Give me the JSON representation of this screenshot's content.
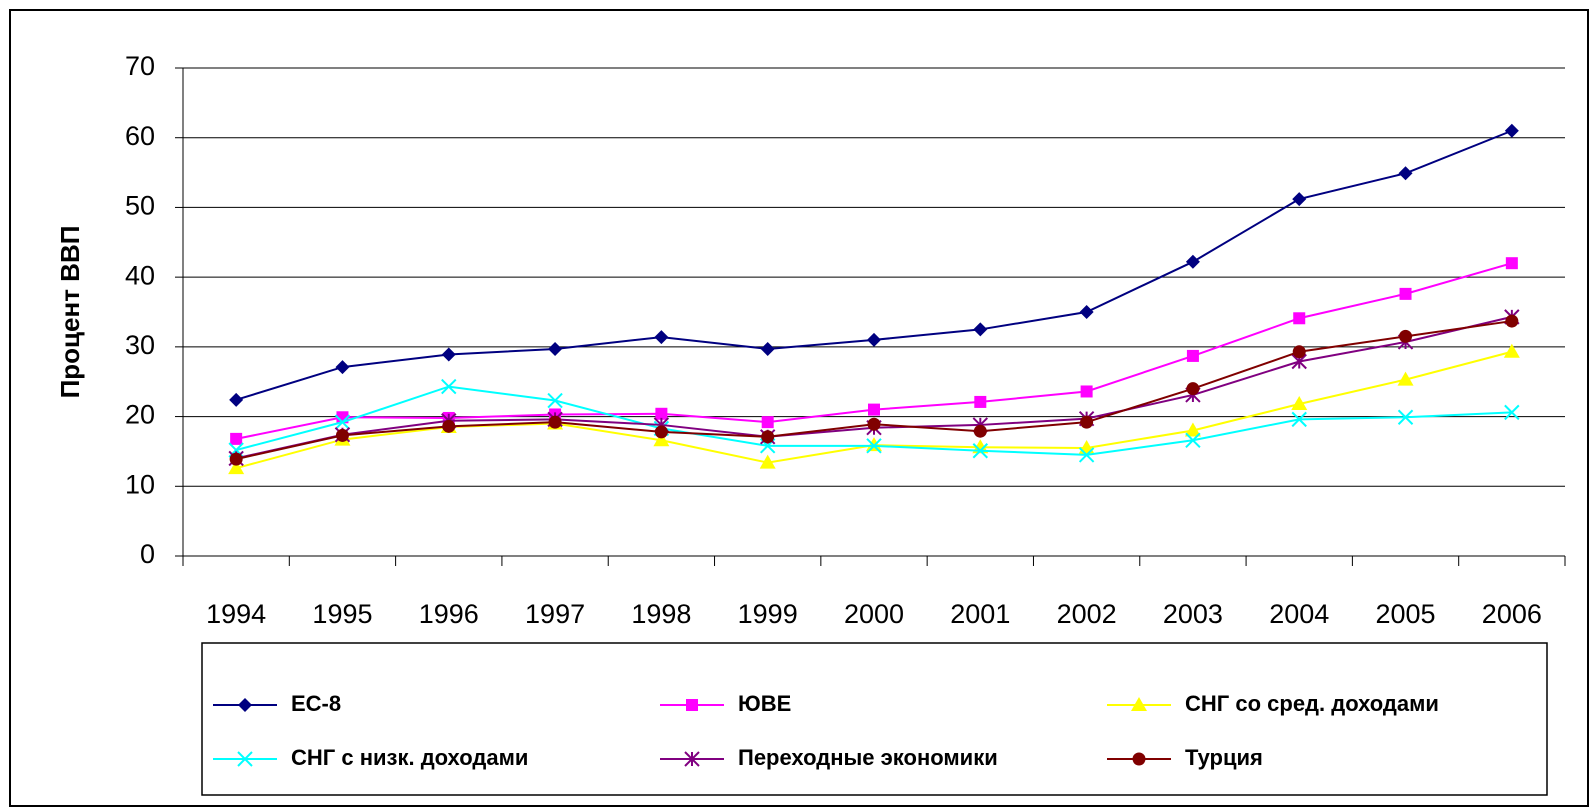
{
  "chart_data": {
    "type": "line",
    "ylabel": "Процент ВВП",
    "categories": [
      "1994",
      "1995",
      "1996",
      "1997",
      "1998",
      "1999",
      "2000",
      "2001",
      "2002",
      "2003",
      "2004",
      "2005",
      "2006"
    ],
    "ylim": [
      0,
      70
    ],
    "yticks": [
      0,
      10,
      20,
      30,
      40,
      50,
      60,
      70
    ],
    "grid": true,
    "series": [
      {
        "name": "ЕС-8",
        "color": "#000080",
        "marker": "diamond",
        "values": [
          22.4,
          27.1,
          28.9,
          29.7,
          31.4,
          29.7,
          31.0,
          32.5,
          35.0,
          42.2,
          51.2,
          54.9,
          61.0
        ]
      },
      {
        "name": "ЮВЕ",
        "color": "#ff00ff",
        "marker": "square",
        "values": [
          16.8,
          19.9,
          19.8,
          20.3,
          20.4,
          19.2,
          21.0,
          22.1,
          23.6,
          28.7,
          34.1,
          37.6,
          42.0
        ]
      },
      {
        "name": "СНГ со сред. доходами",
        "color": "#ffff00",
        "marker": "triangle",
        "values": [
          12.6,
          16.7,
          18.5,
          19.0,
          16.6,
          13.4,
          15.9,
          15.6,
          15.5,
          18.0,
          21.8,
          25.3,
          29.3
        ]
      },
      {
        "name": "СНГ с низк. доходами",
        "color": "#00ffff",
        "marker": "x",
        "values": [
          15.2,
          19.2,
          24.3,
          22.3,
          18.3,
          15.8,
          15.8,
          15.1,
          14.5,
          16.6,
          19.6,
          19.9,
          20.6
        ]
      },
      {
        "name": "Переходные экономики",
        "color": "#800080",
        "marker": "star",
        "values": [
          14.0,
          17.4,
          19.4,
          19.6,
          18.8,
          17.1,
          18.4,
          18.8,
          19.7,
          23.1,
          27.9,
          30.7,
          34.3
        ]
      },
      {
        "name": "Турция",
        "color": "#800000",
        "marker": "circle",
        "values": [
          13.9,
          17.3,
          18.6,
          19.2,
          17.8,
          17.1,
          18.9,
          17.9,
          19.2,
          24.0,
          29.3,
          31.5,
          33.7
        ]
      }
    ]
  }
}
